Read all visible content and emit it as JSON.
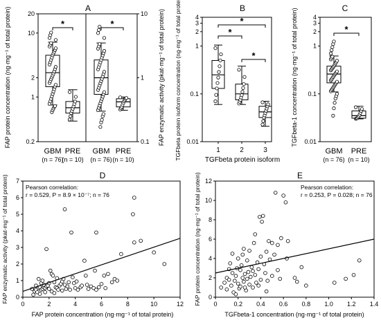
{
  "chart_data": [
    {
      "panel": "A",
      "type": "box",
      "scale": "log",
      "ylabel_left": "FAP protein concentration (ng·mg⁻¹ of total protein)",
      "ylabel_right": "FAP enzymatic activity (pkat·mg⁻¹ of total protein)",
      "ylim_left": [
        0.2,
        20
      ],
      "ylim_right": [
        0.1,
        10
      ],
      "left_ticks": [
        "0.2",
        "1",
        "2",
        "10",
        "20"
      ],
      "right_ticks": [
        "0.1",
        "1",
        "10"
      ],
      "groups": [
        {
          "name": "GBM",
          "n": "(n = 76)",
          "axis": "left",
          "whisker_low": 0.75,
          "q1": 1.45,
          "median": 2.4,
          "q3": 4.5,
          "whisker_high": 7.2,
          "outliers": [
            0.58,
            0.62,
            0.66,
            0.7,
            0.72,
            7.8,
            8.4,
            9.3,
            10.2
          ]
        },
        {
          "name": "PRE",
          "n": "(n = 10)",
          "axis": "left",
          "whisker_low": 0.42,
          "q1": 0.56,
          "median": 0.68,
          "q3": 0.85,
          "whisker_high": 1.3,
          "outliers": []
        },
        {
          "name": "GBM",
          "n": "(n = 76)",
          "axis": "right",
          "whisker_low": 0.3,
          "q1": 0.55,
          "median": 1.0,
          "q3": 1.9,
          "whisker_high": 3.5,
          "outliers": [
            0.17,
            0.2,
            0.22,
            0.25,
            0.27,
            4.2,
            5.0,
            5.6,
            6.3
          ]
        },
        {
          "name": "PRE",
          "n": "(n = 10)",
          "axis": "right",
          "whisker_low": 0.31,
          "q1": 0.35,
          "median": 0.42,
          "q3": 0.47,
          "whisker_high": 0.5,
          "outliers": []
        }
      ],
      "significance": [
        {
          "pair": [
            0,
            1
          ],
          "label": "*"
        },
        {
          "pair": [
            2,
            3
          ],
          "label": "*"
        }
      ]
    },
    {
      "panel": "B",
      "type": "box",
      "scale": "log",
      "ylabel": "TGFbeta protein isoform concentration (ng·mg⁻¹ of total protein)",
      "xlabel": "TGFbeta protein isoform",
      "ylim": [
        0.01,
        4
      ],
      "ticks": [
        "0.01",
        "0.1",
        "1",
        "2",
        "3",
        "4"
      ],
      "groups": [
        {
          "name": "1",
          "whisker_low": 0.06,
          "q1": 0.13,
          "median": 0.25,
          "q3": 0.5,
          "whisker_high": 1.05,
          "outliers": []
        },
        {
          "name": "2",
          "whisker_low": 0.06,
          "q1": 0.075,
          "median": 0.1,
          "q3": 0.16,
          "whisker_high": 0.38,
          "outliers": []
        },
        {
          "name": "3",
          "whisker_low": 0.021,
          "q1": 0.032,
          "median": 0.042,
          "q3": 0.055,
          "whisker_high": 0.07,
          "outliers": []
        }
      ],
      "significance": [
        {
          "pair": [
            0,
            1
          ],
          "label": "*"
        },
        {
          "pair": [
            0,
            2
          ],
          "label": "*"
        },
        {
          "pair": [
            1,
            2
          ],
          "label": "*"
        }
      ]
    },
    {
      "panel": "C",
      "type": "box",
      "scale": "log",
      "ylabel": "TGFbeta-1 concentration (ng·mg⁻¹ of total protein)",
      "ylim": [
        0.01,
        4
      ],
      "ticks": [
        "0.01",
        "0.1",
        "1",
        "2",
        "3",
        "4"
      ],
      "groups": [
        {
          "name": "GBM",
          "n": "(n = 76)",
          "whisker_low": 0.11,
          "q1": 0.17,
          "median": 0.26,
          "q3": 0.38,
          "whisker_high": 0.62,
          "outliers": [
            0.035,
            0.05,
            0.065,
            0.08,
            0.09,
            0.1,
            0.7,
            0.82,
            0.95,
            1.1,
            1.25
          ]
        },
        {
          "name": "PRE",
          "n": "(n = 10)",
          "whisker_low": 0.03,
          "q1": 0.031,
          "median": 0.035,
          "q3": 0.044,
          "whisker_high": 0.055,
          "outliers": []
        }
      ],
      "significance": [
        {
          "pair": [
            0,
            1
          ],
          "label": "*"
        }
      ]
    },
    {
      "panel": "D",
      "type": "scatter",
      "xlabel": "FAP protein concentration (ng·mg⁻¹ of total protein)",
      "ylabel": "FAP enzymatic activity (pkat·mg⁻¹ of total protein)",
      "xlim": [
        0,
        12
      ],
      "ylim": [
        0,
        7
      ],
      "xticks": [
        0,
        2,
        4,
        6,
        8,
        10,
        12
      ],
      "yticks": [
        0,
        1,
        2,
        3,
        4,
        5,
        6,
        7
      ],
      "annotation": {
        "line1": "Pearson correlation:",
        "line2": "r = 0.529, P = 8.9 × 10⁻⁷; n = 76"
      },
      "fit": {
        "x": [
          0,
          12
        ],
        "y": [
          0.35,
          3.55
        ]
      },
      "points": [
        [
          0.8,
          0.15
        ],
        [
          0.9,
          0.35
        ],
        [
          1.0,
          0.45
        ],
        [
          1.1,
          0.3
        ],
        [
          1.2,
          0.55
        ],
        [
          1.3,
          0.6
        ],
        [
          1.4,
          0.45
        ],
        [
          1.5,
          0.5
        ],
        [
          1.6,
          0.6
        ],
        [
          1.6,
          0.75
        ],
        [
          1.7,
          0.55
        ],
        [
          1.8,
          0.65
        ],
        [
          1.9,
          0.7
        ],
        [
          2.0,
          0.5
        ],
        [
          2.0,
          0.85
        ],
        [
          2.1,
          1.6
        ],
        [
          2.2,
          1.4
        ],
        [
          2.3,
          1.3
        ],
        [
          2.4,
          0.9
        ],
        [
          2.5,
          0.6
        ],
        [
          2.6,
          0.55
        ],
        [
          2.7,
          0.45
        ],
        [
          2.8,
          0.7
        ],
        [
          2.9,
          0.8
        ],
        [
          3.0,
          0.95
        ],
        [
          3.1,
          1.1
        ],
        [
          3.2,
          0.75
        ],
        [
          3.3,
          0.5
        ],
        [
          3.4,
          0.65
        ],
        [
          3.5,
          0.9
        ],
        [
          3.6,
          0.45
        ],
        [
          3.7,
          3.9
        ],
        [
          3.8,
          1.2
        ],
        [
          3.9,
          0.85
        ],
        [
          4.0,
          0.55
        ],
        [
          4.2,
          0.45
        ],
        [
          4.4,
          0.6
        ],
        [
          4.5,
          0.7
        ],
        [
          4.7,
          2.2
        ],
        [
          4.8,
          1.3
        ],
        [
          5.0,
          0.5
        ],
        [
          5.2,
          0.65
        ],
        [
          5.4,
          0.55
        ],
        [
          5.6,
          0.45
        ],
        [
          5.8,
          0.6
        ],
        [
          6.0,
          0.8
        ],
        [
          6.2,
          1.3
        ],
        [
          6.5,
          1.4
        ],
        [
          6.8,
          0.9
        ],
        [
          7.0,
          1.1
        ],
        [
          7.2,
          1.0
        ],
        [
          3.2,
          5.3
        ],
        [
          5.6,
          3.9
        ],
        [
          8.4,
          5.0
        ],
        [
          8.5,
          6.0
        ],
        [
          8.5,
          3.3
        ],
        [
          9.0,
          3.4
        ],
        [
          10.0,
          2.7
        ],
        [
          10.8,
          2.0
        ],
        [
          7.5,
          2.6
        ],
        [
          1.2,
          1.1
        ],
        [
          1.4,
          0.85
        ],
        [
          1.8,
          2.9
        ],
        [
          1.5,
          1.0
        ],
        [
          2.2,
          0.35
        ],
        [
          1.0,
          0.7
        ],
        [
          0.7,
          0.5
        ],
        [
          4.1,
          0.95
        ],
        [
          4.9,
          0.75
        ],
        [
          5.5,
          1.6
        ],
        [
          2.6,
          1.15
        ],
        [
          3.0,
          0.4
        ],
        [
          6.3,
          0.55
        ],
        [
          2.4,
          0.25
        ],
        [
          1.7,
          0.3
        ],
        [
          1.3,
          0.2
        ]
      ]
    },
    {
      "panel": "E",
      "type": "scatter",
      "xlabel": "TGFbeta-1 concentration (ng·mg⁻¹ of total protein)",
      "ylabel": "FAP protein concentration (ng·mg⁻¹ of total protein)",
      "xlim": [
        0,
        1.4
      ],
      "ylim": [
        0,
        12
      ],
      "xticks": [
        "0",
        "0.2",
        "0.4",
        "0.6",
        "0.8",
        "1.0",
        "1.2",
        "1.4"
      ],
      "yticks": [
        0,
        2,
        4,
        6,
        8,
        10,
        12
      ],
      "annotation": {
        "line1": "Pearson correlation:",
        "line2": "r = 0.253, P = 0.028; n = 76"
      },
      "fit": {
        "x": [
          0,
          1.4
        ],
        "y": [
          2.5,
          6.0
        ]
      },
      "points": [
        [
          0.05,
          1.0
        ],
        [
          0.08,
          1.5
        ],
        [
          0.1,
          2.0
        ],
        [
          0.1,
          0.8
        ],
        [
          0.12,
          1.8
        ],
        [
          0.13,
          3.5
        ],
        [
          0.14,
          1.2
        ],
        [
          0.15,
          2.5
        ],
        [
          0.15,
          4.5
        ],
        [
          0.16,
          0.5
        ],
        [
          0.17,
          1.7
        ],
        [
          0.18,
          2.2
        ],
        [
          0.19,
          3.0
        ],
        [
          0.2,
          1.4
        ],
        [
          0.2,
          4.0
        ],
        [
          0.21,
          0.9
        ],
        [
          0.22,
          2.8
        ],
        [
          0.22,
          1.1
        ],
        [
          0.23,
          3.3
        ],
        [
          0.24,
          2.0
        ],
        [
          0.25,
          1.6
        ],
        [
          0.25,
          5.0
        ],
        [
          0.26,
          2.4
        ],
        [
          0.27,
          0.7
        ],
        [
          0.28,
          1.9
        ],
        [
          0.28,
          3.8
        ],
        [
          0.29,
          2.6
        ],
        [
          0.3,
          1.3
        ],
        [
          0.3,
          4.8
        ],
        [
          0.31,
          2.1
        ],
        [
          0.32,
          3.1
        ],
        [
          0.33,
          1.0
        ],
        [
          0.34,
          5.6
        ],
        [
          0.35,
          2.3
        ],
        [
          0.35,
          6.5
        ],
        [
          0.36,
          1.5
        ],
        [
          0.37,
          3.6
        ],
        [
          0.38,
          2.9
        ],
        [
          0.39,
          8.3
        ],
        [
          0.4,
          4.2
        ],
        [
          0.4,
          1.8
        ],
        [
          0.41,
          7.8
        ],
        [
          0.42,
          8.4
        ],
        [
          0.43,
          3.4
        ],
        [
          0.44,
          2.5
        ],
        [
          0.45,
          4.7
        ],
        [
          0.46,
          1.7
        ],
        [
          0.47,
          5.8
        ],
        [
          0.48,
          3.9
        ],
        [
          0.5,
          2.2
        ],
        [
          0.5,
          5.6
        ],
        [
          0.52,
          4.4
        ],
        [
          0.53,
          10.8
        ],
        [
          0.55,
          5.4
        ],
        [
          0.57,
          1.9
        ],
        [
          0.58,
          6.1
        ],
        [
          0.6,
          10.5
        ],
        [
          0.62,
          9.8
        ],
        [
          0.63,
          4.0
        ],
        [
          0.64,
          5.8
        ],
        [
          0.7,
          2.0
        ],
        [
          0.72,
          1.6
        ],
        [
          0.76,
          3.1
        ],
        [
          0.8,
          1.2
        ],
        [
          1.05,
          1.5
        ],
        [
          1.15,
          1.9
        ],
        [
          1.22,
          2.3
        ],
        [
          1.27,
          3.8
        ],
        [
          0.18,
          0.3
        ],
        [
          0.26,
          1.0
        ],
        [
          0.33,
          2.7
        ],
        [
          0.24,
          4.4
        ],
        [
          0.12,
          2.9
        ],
        [
          0.38,
          1.2
        ],
        [
          0.45,
          0.6
        ],
        [
          0.55,
          2.8
        ]
      ]
    }
  ]
}
